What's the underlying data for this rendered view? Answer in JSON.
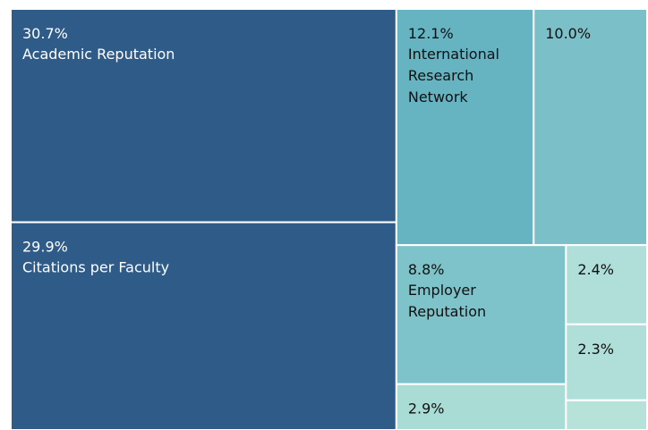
{
  "chart_data": {
    "type": "treemap",
    "categories": [
      "Academic Reputation",
      "Citations per Faculty",
      "International Research Network",
      null,
      "Employer Reputation",
      null,
      null,
      null,
      null
    ],
    "values": [
      30.7,
      29.9,
      12.1,
      10.0,
      8.8,
      2.9,
      2.4,
      2.3,
      0.9
    ],
    "value_labels": [
      "30.7%",
      "29.9%",
      "12.1%",
      "10.0%",
      "8.8%",
      "2.9%",
      "2.4%",
      "2.3%",
      null
    ],
    "colors": [
      "#2e5b87",
      "#2e5b87",
      "#66b3c2",
      "#7bbfc9",
      "#7fc3ca",
      "#a9dcd5",
      "#b0ded8",
      "#b0ded8",
      "#b6e2da"
    ]
  }
}
